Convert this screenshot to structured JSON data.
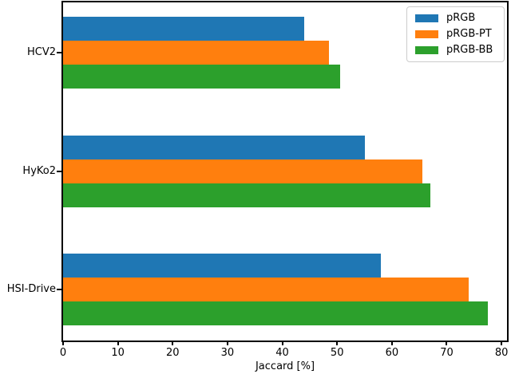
{
  "chart_data": {
    "type": "bar",
    "orientation": "horizontal",
    "title": "",
    "xlabel": "Jaccard [%]",
    "ylabel": "",
    "categories": [
      "HCV2",
      "HyKo2",
      "HSI-Drive"
    ],
    "series": [
      {
        "name": "pRGB",
        "color": "#1f77b4",
        "values": [
          44.0,
          55.0,
          58.0
        ]
      },
      {
        "name": "pRGB-PT",
        "color": "#ff7f0e",
        "values": [
          48.5,
          65.5,
          74.0
        ]
      },
      {
        "name": "pRGB-BB",
        "color": "#2ca02c",
        "values": [
          50.5,
          67.0,
          77.5
        ]
      }
    ],
    "xlim": [
      0,
      81
    ],
    "xticks": [
      0,
      10,
      20,
      30,
      40,
      50,
      60,
      70,
      80
    ],
    "grid": false,
    "legend_position": "upper right",
    "background_color": "#ffffff",
    "spine_color": "#000000"
  }
}
